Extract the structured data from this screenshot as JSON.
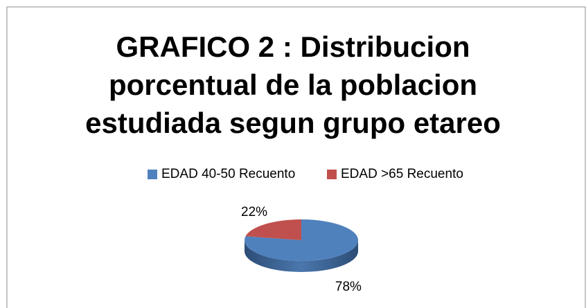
{
  "chart_data": {
    "type": "pie",
    "title": "GRAFICO 2 : Distribucion porcentual de la poblacion estudiada segun grupo etareo",
    "categories": [
      "EDAD 40-50 Recuento",
      "EDAD >65 Recuento"
    ],
    "values": [
      78,
      22
    ],
    "value_labels": [
      "78%",
      "22%"
    ],
    "colors": [
      "#4f81bd",
      "#c0504d"
    ],
    "legend": "top"
  }
}
